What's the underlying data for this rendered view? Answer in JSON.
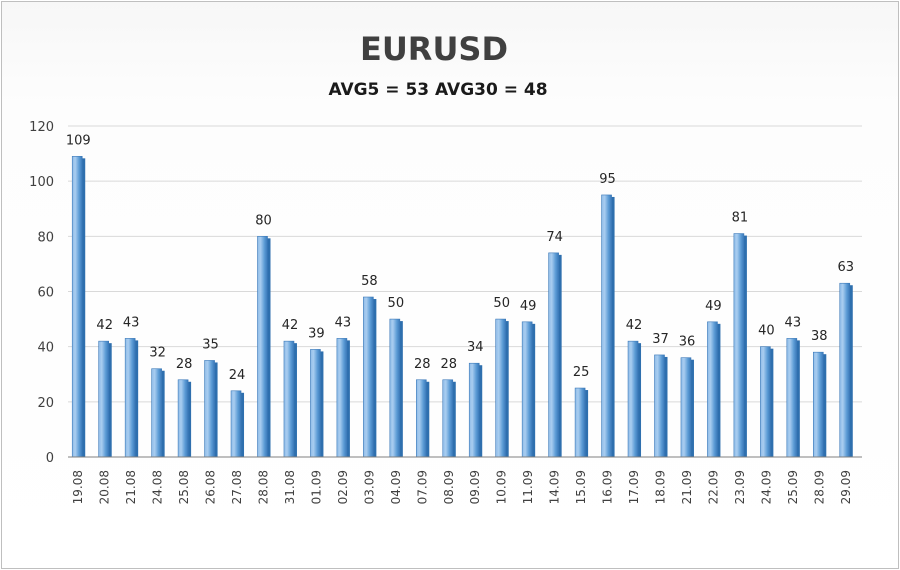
{
  "chart_data": {
    "type": "bar",
    "title": "EURUSD",
    "subtitle": "AVG5 = 53 AVG30 = 48",
    "xlabel": "",
    "ylabel": "",
    "ylim": [
      0,
      120
    ],
    "yticks": [
      0,
      20,
      40,
      60,
      80,
      100,
      120
    ],
    "grid": true,
    "legend": "none",
    "categories": [
      "19.08",
      "20.08",
      "21.08",
      "24.08",
      "25.08",
      "26.08",
      "27.08",
      "28.08",
      "31.08",
      "01.09",
      "02.09",
      "03.09",
      "04.09",
      "07.09",
      "08.09",
      "09.09",
      "10.09",
      "11.09",
      "14.09",
      "15.09",
      "16.09",
      "17.09",
      "18.09",
      "21.09",
      "22.09",
      "23.09",
      "24.09",
      "25.09",
      "28.09",
      "29.09"
    ],
    "values": [
      109,
      42,
      43,
      32,
      28,
      35,
      24,
      80,
      42,
      39,
      43,
      58,
      50,
      28,
      28,
      34,
      50,
      49,
      74,
      25,
      95,
      42,
      37,
      36,
      49,
      81,
      40,
      43,
      38,
      63
    ],
    "colors": {
      "bar_light": "#a9cdf0",
      "bar_main": "#5b9bd5",
      "bar_dark": "#2e6fae",
      "grid": "#d9d9d9",
      "axis": "#7f7f7f"
    }
  }
}
